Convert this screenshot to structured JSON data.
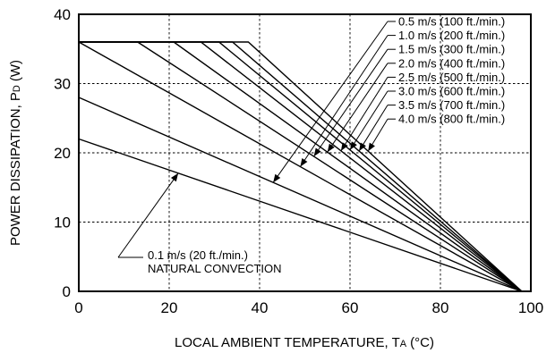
{
  "chart_data": {
    "type": "line",
    "title": "",
    "xlabel": "LOCAL AMBIENT TEMPERATURE, T",
    "xlabel_sub": "A",
    "xlabel_unit": "(°C)",
    "ylabel": "POWER DISSIPATION, P",
    "ylabel_sub": "D",
    "ylabel_unit": "(W)",
    "xlim": [
      0,
      100
    ],
    "ylim": [
      0,
      40
    ],
    "xticks": [
      0,
      20,
      40,
      60,
      80,
      100
    ],
    "yticks": [
      0,
      10,
      20,
      30,
      40
    ],
    "grid": true,
    "max_power_clamp": 36,
    "series": [
      {
        "name": "0.1 m/s (20 ft./min.)",
        "name_line2": "NATURAL CONVECTION",
        "x": [
          0,
          98
        ],
        "y": [
          22,
          0
        ]
      },
      {
        "name": "0.5 m/s (100 ft./min.)",
        "x": [
          0,
          98
        ],
        "y": [
          28,
          0
        ]
      },
      {
        "name": "1.0 m/s (200 ft./min.)",
        "x": [
          0,
          98
        ],
        "y": [
          36,
          0
        ]
      },
      {
        "name": "1.5 m/s (300 ft./min.)",
        "x": [
          0,
          13,
          98
        ],
        "y": [
          36,
          36,
          0
        ]
      },
      {
        "name": "2.0 m/s (400 ft./min.)",
        "x": [
          0,
          21,
          98
        ],
        "y": [
          36,
          36,
          0
        ]
      },
      {
        "name": "2.5 m/s (500 ft./min.)",
        "x": [
          0,
          27,
          98
        ],
        "y": [
          36,
          36,
          0
        ]
      },
      {
        "name": "3.0 m/s (600 ft./min.)",
        "x": [
          0,
          31,
          98
        ],
        "y": [
          36,
          36,
          0
        ]
      },
      {
        "name": "3.5 m/s (700 ft./min.)",
        "x": [
          0,
          34,
          98
        ],
        "y": [
          36,
          36,
          0
        ]
      },
      {
        "name": "4.0 m/s (800 ft./min.)",
        "x": [
          0,
          37.5,
          98
        ],
        "y": [
          36,
          36,
          0
        ]
      }
    ]
  }
}
